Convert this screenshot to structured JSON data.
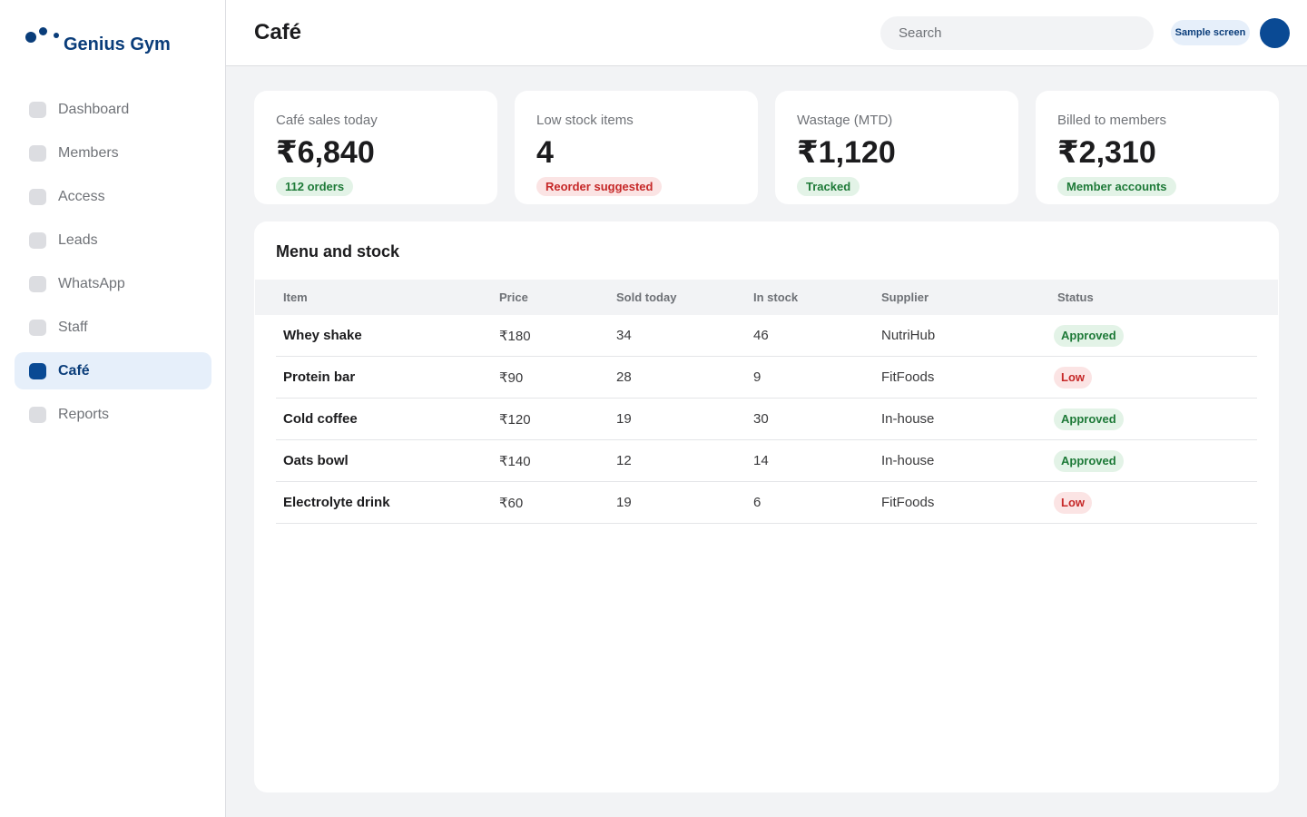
{
  "brand": {
    "name": "Genius Gym"
  },
  "sidebar": {
    "items": [
      {
        "label": "Dashboard"
      },
      {
        "label": "Members"
      },
      {
        "label": "Access"
      },
      {
        "label": "Leads"
      },
      {
        "label": "WhatsApp"
      },
      {
        "label": "Staff"
      },
      {
        "label": "Café",
        "active": true
      },
      {
        "label": "Reports"
      }
    ]
  },
  "header": {
    "title": "Café",
    "search_placeholder": "Search",
    "badge": "Sample screen"
  },
  "stats": [
    {
      "label": "Café sales today",
      "value": "₹6,840",
      "pill": "112 orders",
      "pill_tone": "green"
    },
    {
      "label": "Low stock items",
      "value": "4",
      "pill": "Reorder suggested",
      "pill_tone": "red"
    },
    {
      "label": "Wastage (MTD)",
      "value": "₹1,120",
      "pill": "Tracked",
      "pill_tone": "green"
    },
    {
      "label": "Billed to members",
      "value": "₹2,310",
      "pill": "Member accounts",
      "pill_tone": "green"
    }
  ],
  "table": {
    "title": "Menu and stock",
    "columns": [
      "Item",
      "Price",
      "Sold today",
      "In stock",
      "Supplier",
      "Status"
    ],
    "rows": [
      {
        "item": "Whey shake",
        "price": "₹180",
        "sold": "34",
        "stock": "46",
        "supplier": "NutriHub",
        "status": "Approved"
      },
      {
        "item": "Protein bar",
        "price": "₹90",
        "sold": "28",
        "stock": "9",
        "supplier": "FitFoods",
        "status": "Low"
      },
      {
        "item": "Cold coffee",
        "price": "₹120",
        "sold": "19",
        "stock": "30",
        "supplier": "In-house",
        "status": "Approved"
      },
      {
        "item": "Oats bowl",
        "price": "₹140",
        "sold": "12",
        "stock": "14",
        "supplier": "In-house",
        "status": "Approved"
      },
      {
        "item": "Electrolyte drink",
        "price": "₹60",
        "sold": "19",
        "stock": "6",
        "supplier": "FitFoods",
        "status": "Low"
      }
    ]
  },
  "colors": {
    "brand": "#0a3d7a",
    "accent": "#0a4a94",
    "success": "#1e7a38",
    "danger": "#c62828",
    "background": "#f2f3f5"
  }
}
